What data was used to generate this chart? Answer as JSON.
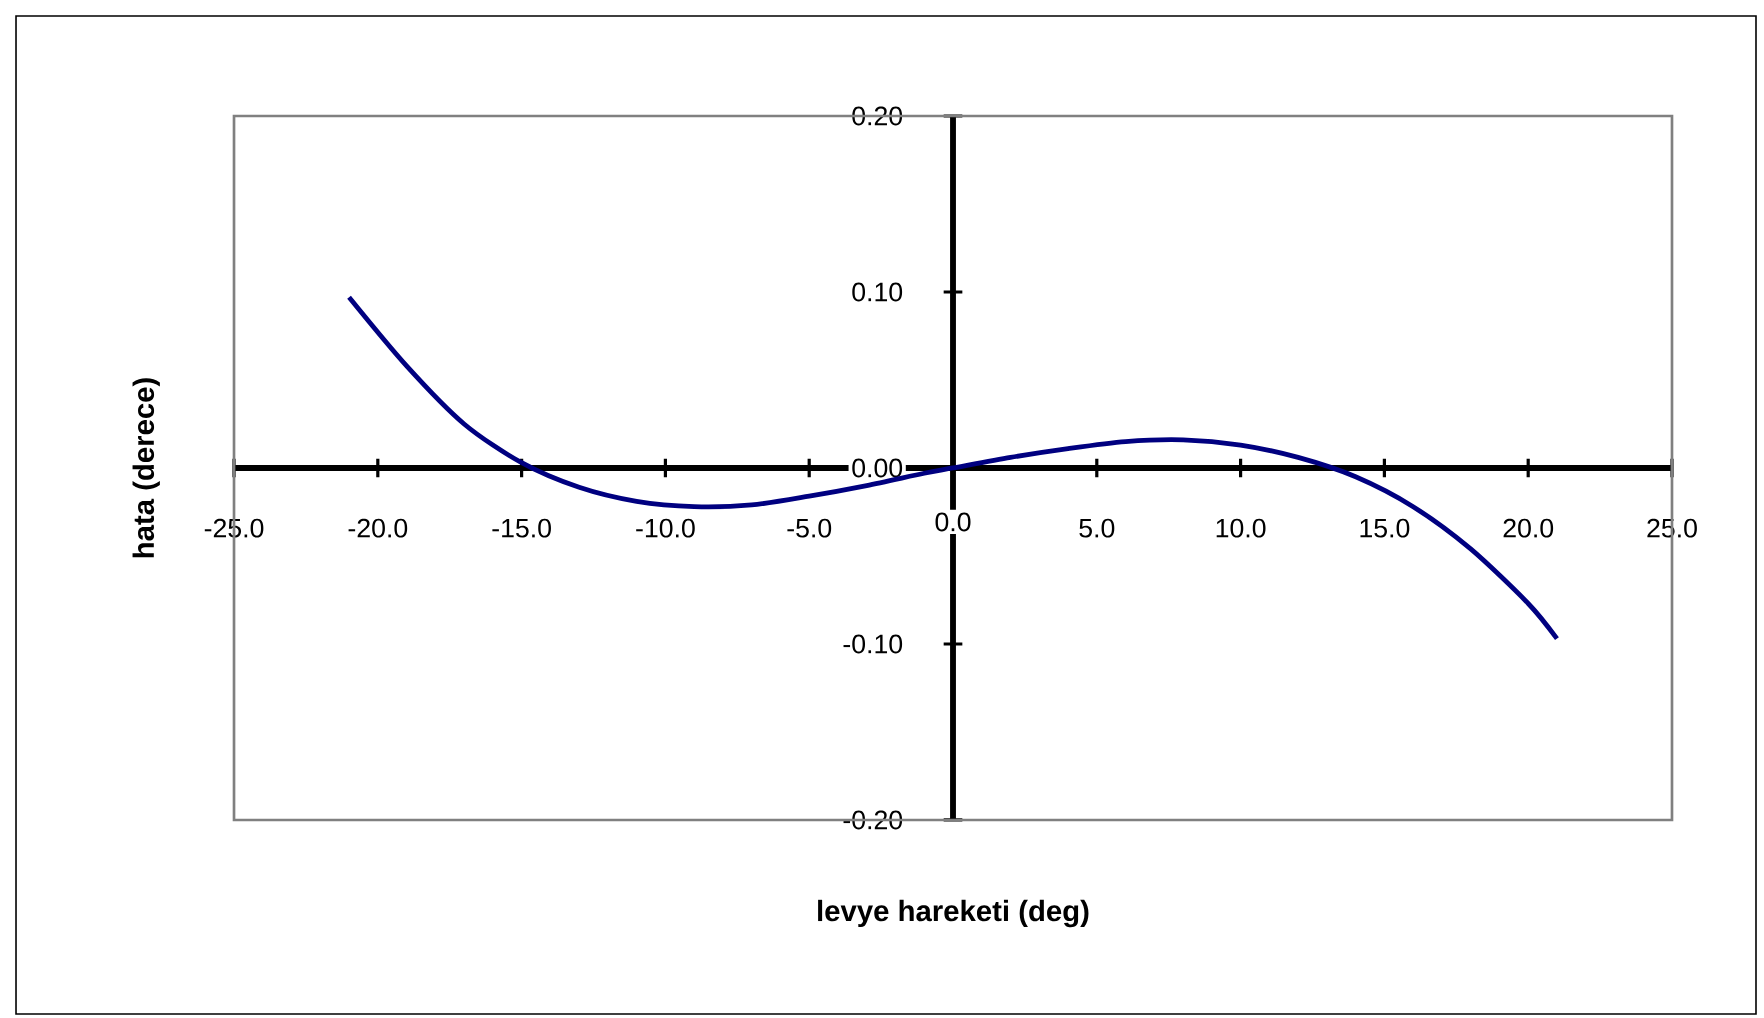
{
  "chart_data": {
    "type": "line",
    "xlabel": "levye hareketi (deg)",
    "ylabel": "hata (derece)",
    "x": [
      -21,
      -19,
      -17,
      -15,
      -13,
      -11,
      -9,
      -7,
      -5,
      -3,
      -1,
      0,
      2,
      4,
      6,
      8,
      10,
      12,
      14,
      16,
      18,
      20,
      21
    ],
    "series": [
      {
        "color": "#000080",
        "values": [
          0.097,
          0.058,
          0.025,
          0.003,
          -0.011,
          -0.019,
          -0.022,
          -0.021,
          -0.016,
          -0.01,
          -0.003,
          0.0,
          0.006,
          0.011,
          0.015,
          0.016,
          0.013,
          0.006,
          -0.005,
          -0.022,
          -0.046,
          -0.077,
          -0.097
        ]
      }
    ],
    "xlim": [
      -25,
      25
    ],
    "ylim": [
      -0.2,
      0.2
    ],
    "xticks": [
      {
        "value": -25,
        "label": "-25.0"
      },
      {
        "value": -20,
        "label": "-20.0"
      },
      {
        "value": -15,
        "label": "-15.0"
      },
      {
        "value": -10,
        "label": "-10.0"
      },
      {
        "value": -5,
        "label": "-5.0"
      },
      {
        "value": 0,
        "label": "0.0"
      },
      {
        "value": 5,
        "label": "5.0"
      },
      {
        "value": 10,
        "label": "10.0"
      },
      {
        "value": 15,
        "label": "15.0"
      },
      {
        "value": 20,
        "label": "20.0"
      },
      {
        "value": 25,
        "label": "25.0"
      }
    ],
    "yticks": [
      {
        "value": -0.2,
        "label": "-0.20"
      },
      {
        "value": -0.1,
        "label": "-0.10"
      },
      {
        "value": 0,
        "label": "0.00"
      },
      {
        "value": 0.1,
        "label": "0.10"
      },
      {
        "value": 0.2,
        "label": "0.20"
      }
    ],
    "marker": "none",
    "line_style": "solid"
  }
}
